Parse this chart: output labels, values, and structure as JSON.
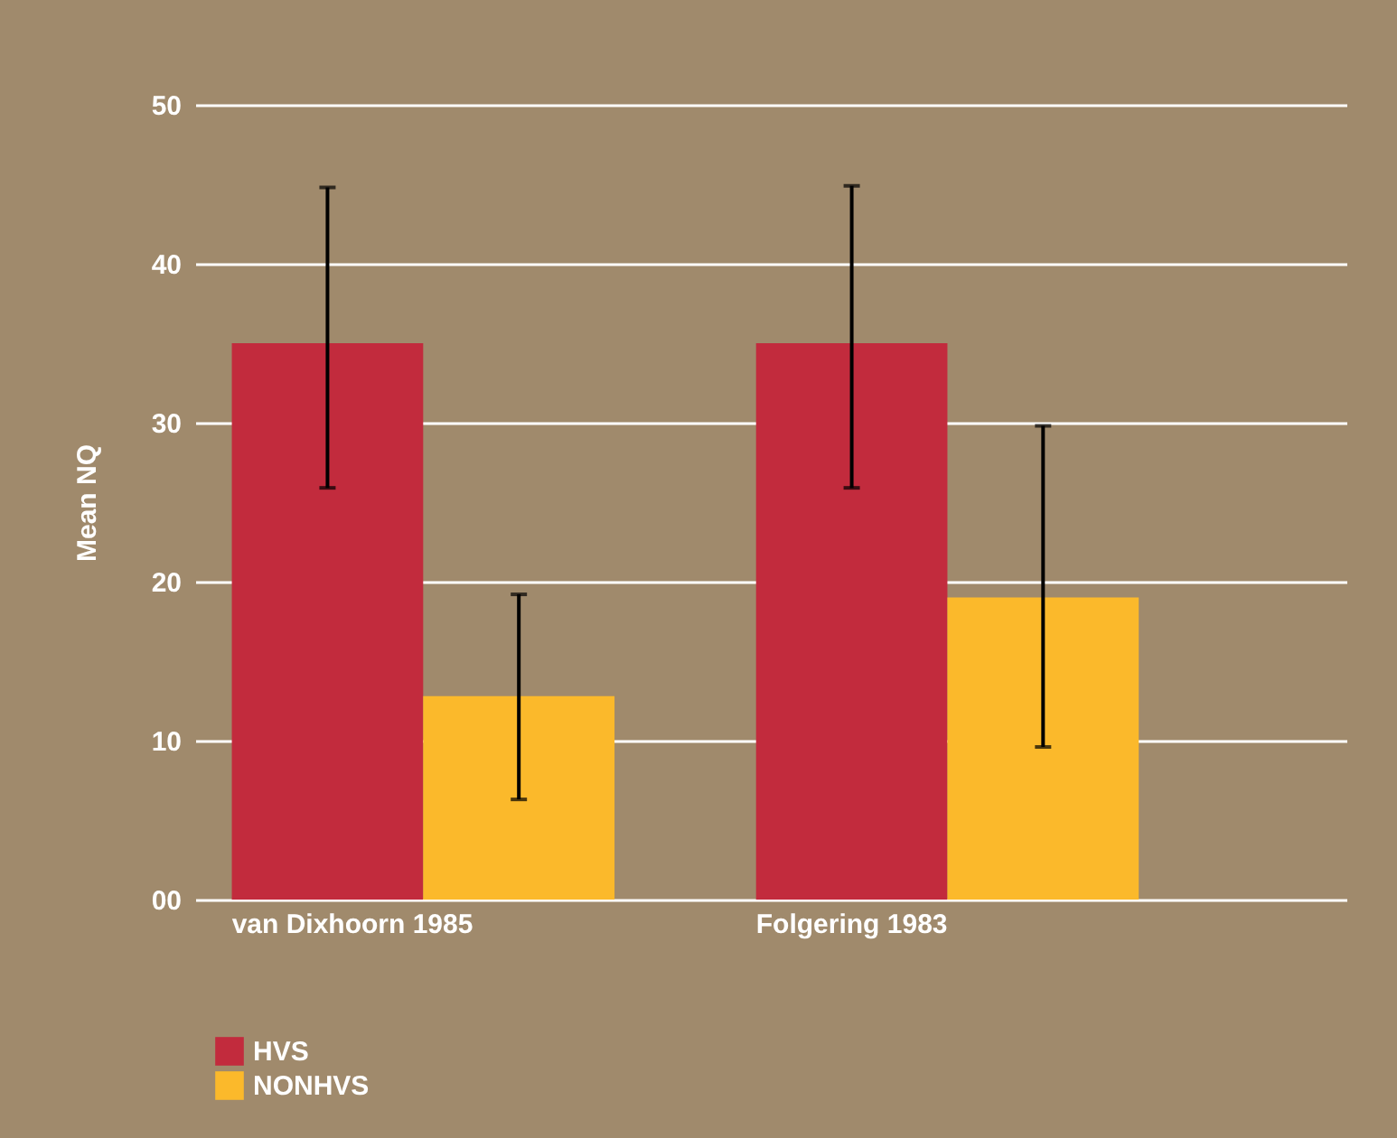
{
  "chart_data": {
    "type": "bar",
    "ylabel": "Mean NQ",
    "categories": [
      "van Dixhoorn 1985",
      "Folgering 1983"
    ],
    "series": [
      {
        "name": "HVS",
        "color": "#c22b3d",
        "values": [
          35,
          35
        ],
        "errors": [
          [
            25.9,
            44.8
          ],
          [
            25.9,
            44.9
          ]
        ]
      },
      {
        "name": "NONHVS",
        "color": "#fbb92b",
        "values": [
          12.8,
          19.0
        ],
        "errors": [
          [
            6.3,
            19.2
          ],
          [
            9.6,
            29.8
          ]
        ]
      }
    ],
    "ylim": [
      0,
      50
    ],
    "yticks": [
      {
        "value": 0,
        "label": "00"
      },
      10,
      20,
      30,
      40,
      50
    ],
    "grid": "y",
    "legend": "bottom left"
  }
}
